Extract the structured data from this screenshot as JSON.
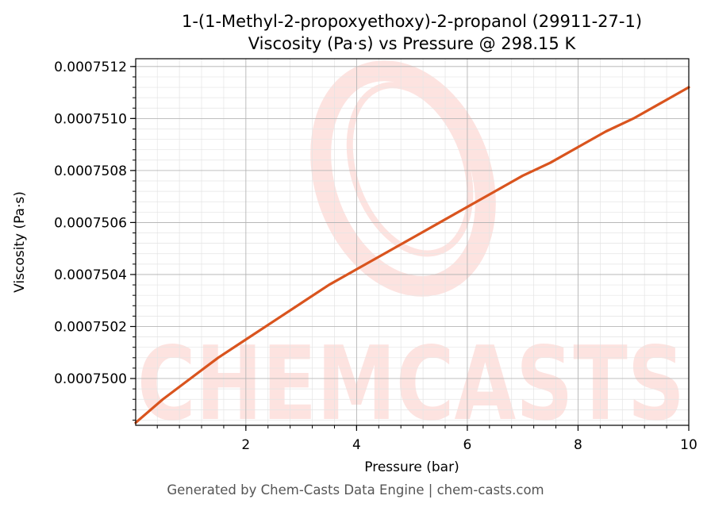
{
  "footer": "Generated by Chem-Casts Data Engine | chem-casts.com",
  "watermark": {
    "text": "CHEMCASTS",
    "color": "#fde3e0"
  },
  "colors": {
    "line": "#d9541e",
    "grid_major": "#b0b0b0",
    "grid_minor": "#e4e4e4"
  },
  "chart_data": {
    "type": "line",
    "title": "1-(1-Methyl-2-propoxyethoxy)-2-propanol (29911-27-1)",
    "subtitle": "Viscosity (Pa·s) vs Pressure @ 298.15 K",
    "xlabel": "Pressure (bar)",
    "ylabel": "Viscosity (Pa·s)",
    "xlim": [
      0.01,
      10
    ],
    "ylim": [
      0.00074982,
      0.00075123
    ],
    "xticks": [
      2,
      4,
      6,
      8,
      10
    ],
    "xtick_labels": [
      "2",
      "4",
      "6",
      "8",
      "10"
    ],
    "yticks": [
      0.00075,
      0.0007502,
      0.0007504,
      0.0007506,
      0.0007508,
      0.000751,
      0.0007512
    ],
    "ytick_labels": [
      "0.0007500",
      "0.0007502",
      "0.0007504",
      "0.0007506",
      "0.0007508",
      "0.0007510",
      "0.0007512"
    ],
    "grid": true,
    "series": [
      {
        "x": [
          0.01,
          0.5,
          1.0,
          1.5,
          2.0,
          2.5,
          3.0,
          3.5,
          4.0,
          4.5,
          5.0,
          5.5,
          6.0,
          6.5,
          7.0,
          7.5,
          8.0,
          8.5,
          9.0,
          9.5,
          10.0
        ],
        "y": [
          0.00074983,
          0.00074992,
          0.00075,
          0.00075008,
          0.00075015,
          0.00075022,
          0.00075029,
          0.00075036,
          0.00075042,
          0.00075048,
          0.00075054,
          0.0007506,
          0.00075066,
          0.00075072,
          0.00075078,
          0.00075083,
          0.00075089,
          0.00075095,
          0.000751,
          0.00075106,
          0.00075112
        ]
      }
    ]
  }
}
